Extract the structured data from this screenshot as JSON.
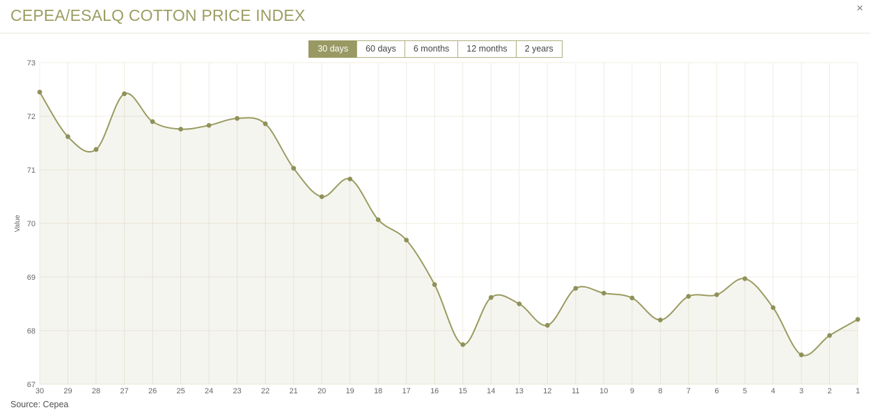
{
  "header": {
    "title": "CEPEA/ESALQ COTTON PRICE INDEX",
    "close_label": "×"
  },
  "range_buttons": [
    {
      "label": "30 days",
      "active": true
    },
    {
      "label": "60 days",
      "active": false
    },
    {
      "label": "6 months",
      "active": false
    },
    {
      "label": "12 months",
      "active": false
    },
    {
      "label": "2 years",
      "active": false
    }
  ],
  "footer": {
    "source": "Source: Cepea"
  },
  "colors": {
    "accent": "#999a63",
    "title": "#9c9d61",
    "line": "#9a9b60",
    "dot": "#90915a",
    "fill": "rgba(155,156,96,0.10)",
    "grid": "#f0ece2",
    "tick_text": "#666666"
  },
  "chart_data": {
    "type": "area",
    "title": "CEPEA/ESALQ COTTON PRICE INDEX",
    "x": [
      30,
      29,
      28,
      27,
      26,
      25,
      24,
      23,
      22,
      21,
      20,
      19,
      18,
      17,
      16,
      15,
      14,
      13,
      12,
      11,
      10,
      9,
      8,
      7,
      6,
      5,
      4,
      3,
      2,
      1
    ],
    "values": [
      72.45,
      71.62,
      71.38,
      72.42,
      71.9,
      71.76,
      71.83,
      71.96,
      71.86,
      71.03,
      70.5,
      70.83,
      70.07,
      69.69,
      68.86,
      67.74,
      68.62,
      68.5,
      68.1,
      68.79,
      68.7,
      68.61,
      68.2,
      68.64,
      68.67,
      68.97,
      68.43,
      67.55,
      67.91,
      68.21
    ],
    "xlabel": "",
    "ylabel": "Value",
    "ylim": [
      67,
      73
    ],
    "yticks": [
      67,
      68,
      69,
      70,
      71,
      72,
      73
    ],
    "grid": true,
    "legend": false,
    "smooth": true
  }
}
